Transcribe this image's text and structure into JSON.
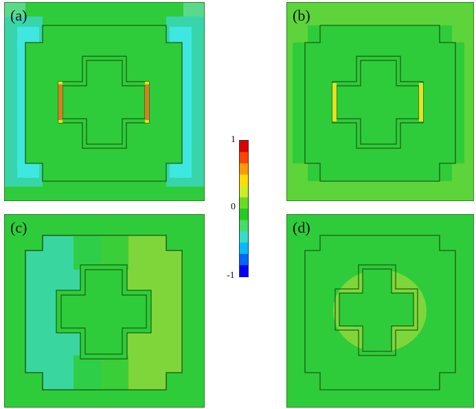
{
  "panels": [
    {
      "id": "a",
      "label": "(a)"
    },
    {
      "id": "b",
      "label": "(b)"
    },
    {
      "id": "c",
      "label": "(c)"
    },
    {
      "id": "d",
      "label": "(d)"
    }
  ],
  "colorbar": {
    "max_label": "1",
    "mid_label": "0",
    "min_label": "-1",
    "stops": [
      "#0000ff",
      "#0066ff",
      "#00bbff",
      "#33ddcc",
      "#44dd66",
      "#22cc22",
      "#66dd22",
      "#ccee22",
      "#ffdd00",
      "#ff9900",
      "#ff4400",
      "#dd0000"
    ]
  },
  "colors": {
    "field_green": "#33cc33",
    "cyan": "#33e0c8",
    "light_green": "#7fd63a",
    "yellow": "#e8e020",
    "orange": "#e07a20",
    "outline": "#1a5c10"
  }
}
